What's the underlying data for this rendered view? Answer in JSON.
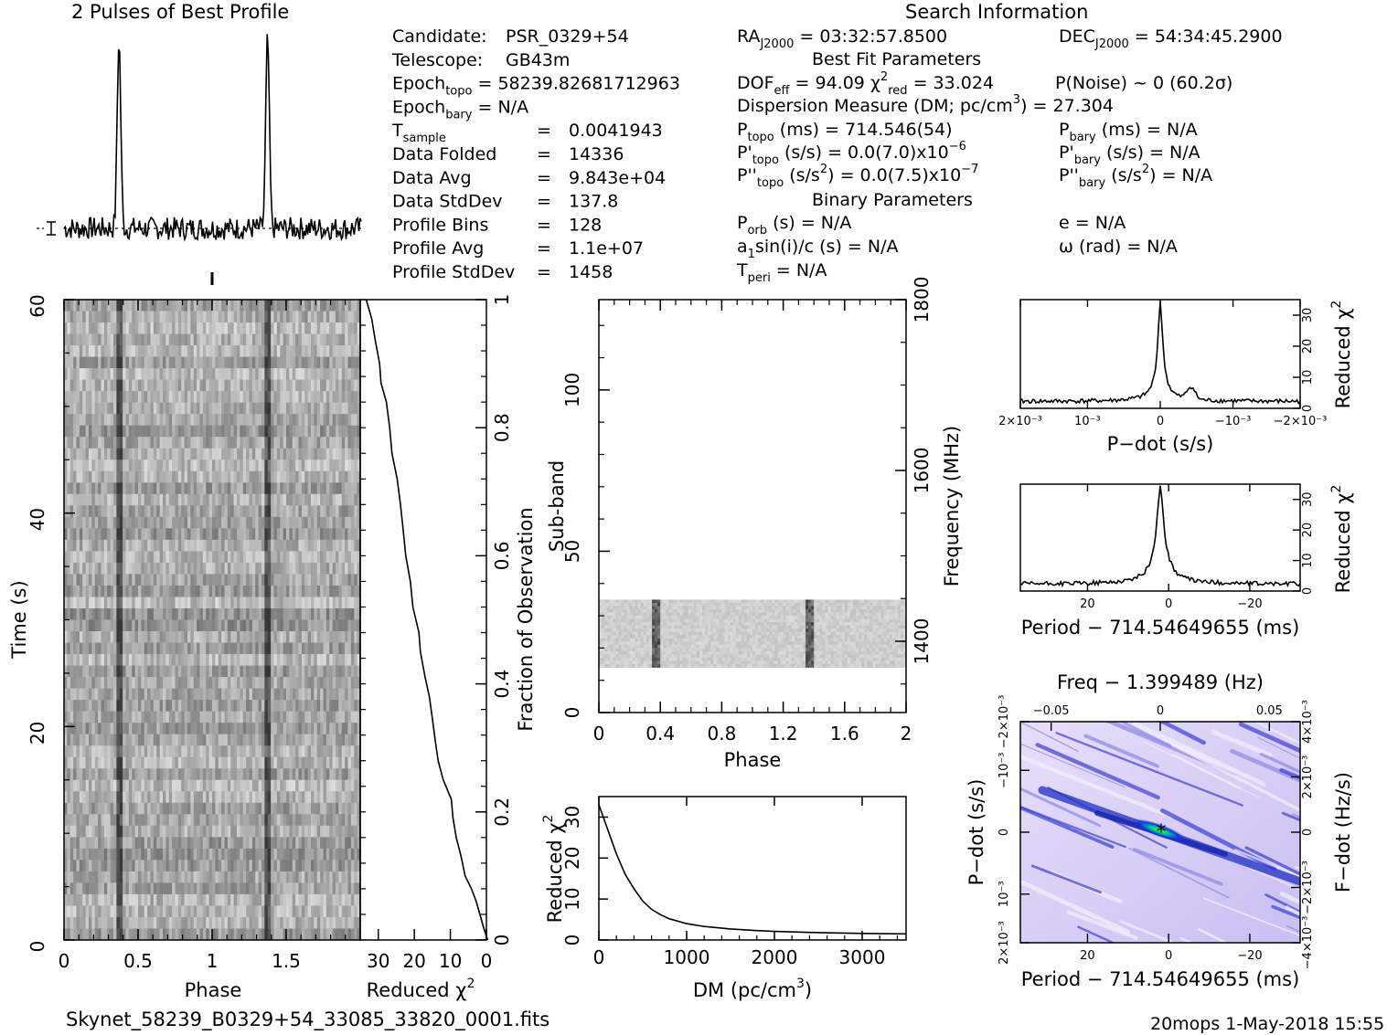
{
  "page": {
    "filename": "Skynet_58239_B0329+54_33085_33820_0001.fits",
    "footer_right": "20mops   1-May-2018 15:55",
    "title_profile": "2 Pulses of Best Profile",
    "title_search": "Search Information"
  },
  "info_left": [
    {
      "label": "Candidate:",
      "value": "PSR_0329+54"
    },
    {
      "label": "Telescope:",
      "value": "GB43m"
    },
    {
      "label": "Epoch",
      "sub": "topo",
      "value": "= 58239.82681712963"
    },
    {
      "label": "Epoch",
      "sub": "bary",
      "value": "= N/A"
    },
    {
      "label": "T",
      "sub": "sample",
      "value": "0.0041943"
    },
    {
      "label": "Data Folded",
      "value": "14336"
    },
    {
      "label": "Data Avg",
      "value": "9.843e+04"
    },
    {
      "label": "Data StdDev",
      "value": "137.8"
    },
    {
      "label": "Profile Bins",
      "value": "128"
    },
    {
      "label": "Profile Avg",
      "value": "1.1e+07"
    },
    {
      "label": "Profile StdDev",
      "value": "1458"
    }
  ],
  "info_right": {
    "ra": "RA",
    "ra_sub": "J2000",
    "ra_value": "= 03:32:57.8500",
    "dec": "DEC",
    "dec_sub": "J2000",
    "dec_value": "= 54:34:45.2900",
    "best_fit_title": "Best Fit Parameters",
    "dof_label": "DOF",
    "dof_sub": "eff",
    "dof_value": "= 94.09",
    "chi_label": "χ",
    "chi_sup": "2",
    "chi_sub": "red",
    "chi_value": "= 33.024",
    "pnoise": "P(Noise) ~ 0   (60.2σ)",
    "dm_line": "Dispersion Measure (DM; pc/cm",
    "dm_sup": "3",
    "dm_value": ") = 27.304",
    "ptopo_label": "P",
    "ptopo_sub": "topo",
    "ptopo_value": "(ms) =  714.546(54)",
    "pbary_label": "P",
    "pbary_sub": "bary",
    "pbary_value": "(ms) = N/A",
    "pdtopo_label": "P'",
    "pdtopo_sub": "topo",
    "pdtopo_value": "(s/s) = 0.0(7.0)x10",
    "pdtopo_exp": "−6",
    "pdbary_label": "P'",
    "pdbary_sub": "bary",
    "pdbary_value": "(s/s) = N/A",
    "pddtopo_label": "P''",
    "pddtopo_sub": "topo",
    "pddtopo_value": "(s/s",
    "pddtopo_value_sup": "2",
    "pddtopo_value2": ") = 0.0(7.5)x10",
    "pddtopo_exp": "−7",
    "pddbary_label": "P''",
    "pddbary_sub": "bary",
    "pddbary_value": "(s/s",
    "pddbary_value_sup": "2",
    "pddbary_value2": ") = N/A",
    "binary_title": "Binary Parameters",
    "porb_label": "P",
    "porb_sub": "orb",
    "porb_value": "(s) = N/A",
    "e_value": "e = N/A",
    "a1_label": "a",
    "a1_sub": "1",
    "a1_value": "sin(i)/c (s) = N/A",
    "omega_value": "ω (rad) = N/A",
    "tperi_label": "T",
    "tperi_sub": "peri",
    "tperi_value": "= N/A",
    "eq": "="
  },
  "labels": {
    "time_s": "Time (s)",
    "phase": "Phase",
    "reduced_chi2": "Reduced χ",
    "chi_sup": "2",
    "fraction_obs": "Fraction of Observation",
    "subband": "Sub-band",
    "frequency": "Frequency (MHz)",
    "dm_axis": "DM (pc/cm",
    "dm_axis_sup": "3",
    "dm_axis_end": ")",
    "pdot": "P−dot (s/s)",
    "period_offset": "Period − 714.54649655 (ms)",
    "freq_offset": "Freq − 1.399489 (Hz)",
    "fdot": "F−dot (Hz/s)"
  },
  "chart_data": [
    {
      "type": "line",
      "name": "profile",
      "title": "2 Pulses of Best Profile",
      "x_range": [
        0,
        2
      ],
      "pulse_phase": [
        0.37,
        1.37
      ],
      "peak_value": 1.0,
      "baseline": 0.0
    },
    {
      "type": "heatmap",
      "name": "time-phase",
      "xlabel": "Phase",
      "ylabel": "Time (s)",
      "xlim": [
        0,
        2
      ],
      "ylim": [
        0,
        60
      ],
      "x_ticks": [
        "0",
        "0.5",
        "1",
        "1.5"
      ],
      "y_ticks": [
        "0",
        "20",
        "40",
        "60"
      ],
      "pulse_phase": [
        0.37,
        1.37
      ]
    },
    {
      "type": "line",
      "name": "chi2-vs-time",
      "xlabel": "Reduced χ2",
      "ylabel": "Fraction of Observation",
      "x_ticks": [
        "30",
        "20",
        "10",
        "0"
      ],
      "y_ticks": [
        "0",
        "0.2",
        "0.4",
        "0.6",
        "0.8",
        "1"
      ],
      "x": [
        0,
        1,
        2,
        3,
        4,
        6,
        7,
        8,
        9,
        10,
        12,
        13,
        14,
        15,
        16,
        17,
        18,
        19,
        20,
        21,
        22,
        23,
        24,
        25,
        26,
        27,
        28,
        29,
        30,
        31,
        32,
        33
      ],
      "y": [
        0,
        0.02,
        0.04,
        0.06,
        0.08,
        0.1,
        0.13,
        0.16,
        0.19,
        0.22,
        0.25,
        0.28,
        0.31,
        0.35,
        0.38,
        0.41,
        0.45,
        0.48,
        0.52,
        0.56,
        0.6,
        0.64,
        0.68,
        0.72,
        0.76,
        0.8,
        0.84,
        0.87,
        0.9,
        0.94,
        0.97,
        1.0
      ]
    },
    {
      "type": "heatmap",
      "name": "subband-phase",
      "xlabel": "Phase",
      "ylabel": "Sub-band",
      "y2label": "Frequency (MHz)",
      "xlim": [
        0,
        2
      ],
      "ylim": [
        0,
        128
      ],
      "x_ticks": [
        "0",
        "0.4",
        "0.8",
        "1.2",
        "1.6",
        "2"
      ],
      "y_ticks": [
        "0",
        "50",
        "100"
      ],
      "y2_ticks": [
        "1400",
        "1600",
        "1800"
      ],
      "band_range": [
        14,
        35
      ],
      "pulse_phase": [
        0.37,
        1.37
      ]
    },
    {
      "type": "line",
      "name": "chi2-vs-dm",
      "xlabel": "DM (pc/cm3)",
      "ylabel": "Reduced χ2",
      "xlim": [
        0,
        3500
      ],
      "ylim": [
        0,
        35
      ],
      "x_ticks": [
        "0",
        "1000",
        "2000",
        "3000"
      ],
      "y_ticks": [
        "0",
        "10",
        "20",
        "30"
      ],
      "x": [
        0,
        50,
        100,
        150,
        200,
        300,
        400,
        500,
        600,
        700,
        800,
        1000,
        1200,
        1500,
        1800,
        2000,
        2500,
        3000,
        3500
      ],
      "y": [
        33,
        30,
        27,
        24,
        21,
        16,
        12.5,
        9.5,
        7.5,
        6.2,
        5.2,
        4,
        3.3,
        2.7,
        2.3,
        2.1,
        1.8,
        1.6,
        1.5
      ]
    },
    {
      "type": "line",
      "name": "chi2-vs-pdot",
      "xlabel": "P−dot (s/s)",
      "ylabel": "Reduced χ2",
      "ylim": [
        0,
        35
      ],
      "x_ticks": [
        "2×10⁻³",
        "10⁻³",
        "0",
        "−10⁻³",
        "−2×10⁻³"
      ],
      "y_ticks": [
        "0",
        "10",
        "20",
        "30"
      ],
      "peak_value": 33
    },
    {
      "type": "line",
      "name": "chi2-vs-period",
      "xlabel": "Period − 714.54649655 (ms)",
      "ylabel": "Reduced χ2",
      "ylim": [
        0,
        35
      ],
      "x_ticks": [
        "20",
        "0",
        "−20"
      ],
      "y_ticks": [
        "0",
        "10",
        "20",
        "30"
      ],
      "peak_value": 33
    },
    {
      "type": "heatmap",
      "name": "period-pdot",
      "xlabel": "Period − 714.54649655 (ms)",
      "ylabel": "P−dot (s/s)",
      "x2label": "Freq − 1.399489 (Hz)",
      "y2label": "F−dot (Hz/s)",
      "x_ticks": [
        "20",
        "0",
        "−20"
      ],
      "x2_ticks": [
        "−0.05",
        "0",
        "0.05"
      ],
      "y_ticks": [
        "2×10⁻³",
        "10⁻³",
        "0",
        "−10⁻³",
        "−2×10⁻³"
      ],
      "y2_ticks": [
        "−4×10⁻³",
        "−2×10⁻³",
        "0",
        "2×10⁻³",
        "4×10⁻³"
      ]
    }
  ]
}
